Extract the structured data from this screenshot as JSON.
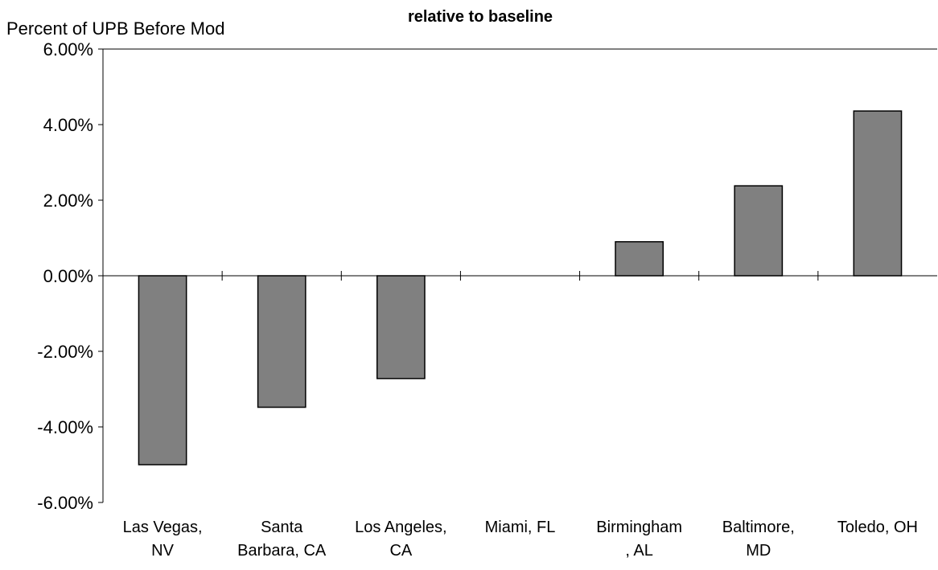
{
  "chart_data": {
    "type": "bar",
    "title": "relative to baseline",
    "xlabel": "",
    "ylabel": "Percent of UPB Before Mod",
    "categories": [
      [
        "Las Vegas,",
        "NV"
      ],
      [
        "Santa",
        "Barbara, CA"
      ],
      [
        "Los Angeles,",
        "CA"
      ],
      [
        "Miami, FL"
      ],
      [
        "Birmingham",
        ", AL"
      ],
      [
        "Baltimore,",
        "MD"
      ],
      [
        "Toledo, OH"
      ]
    ],
    "values": [
      -5.0,
      -3.48,
      -2.72,
      0.0,
      0.9,
      2.38,
      4.36
    ],
    "ylim": [
      -6,
      6
    ],
    "yticks": [
      6,
      4,
      2,
      0,
      -2,
      -4,
      -6
    ],
    "ytick_labels": [
      "6.00%",
      "4.00%",
      "2.00%",
      "0.00%",
      "-2.00%",
      "-4.00%",
      "-6.00%"
    ],
    "grid": false,
    "legend": "none",
    "colors": {
      "bar_fill": "#808080",
      "bar_stroke": "#000000",
      "axis": "#000000",
      "text": "#000000"
    }
  }
}
